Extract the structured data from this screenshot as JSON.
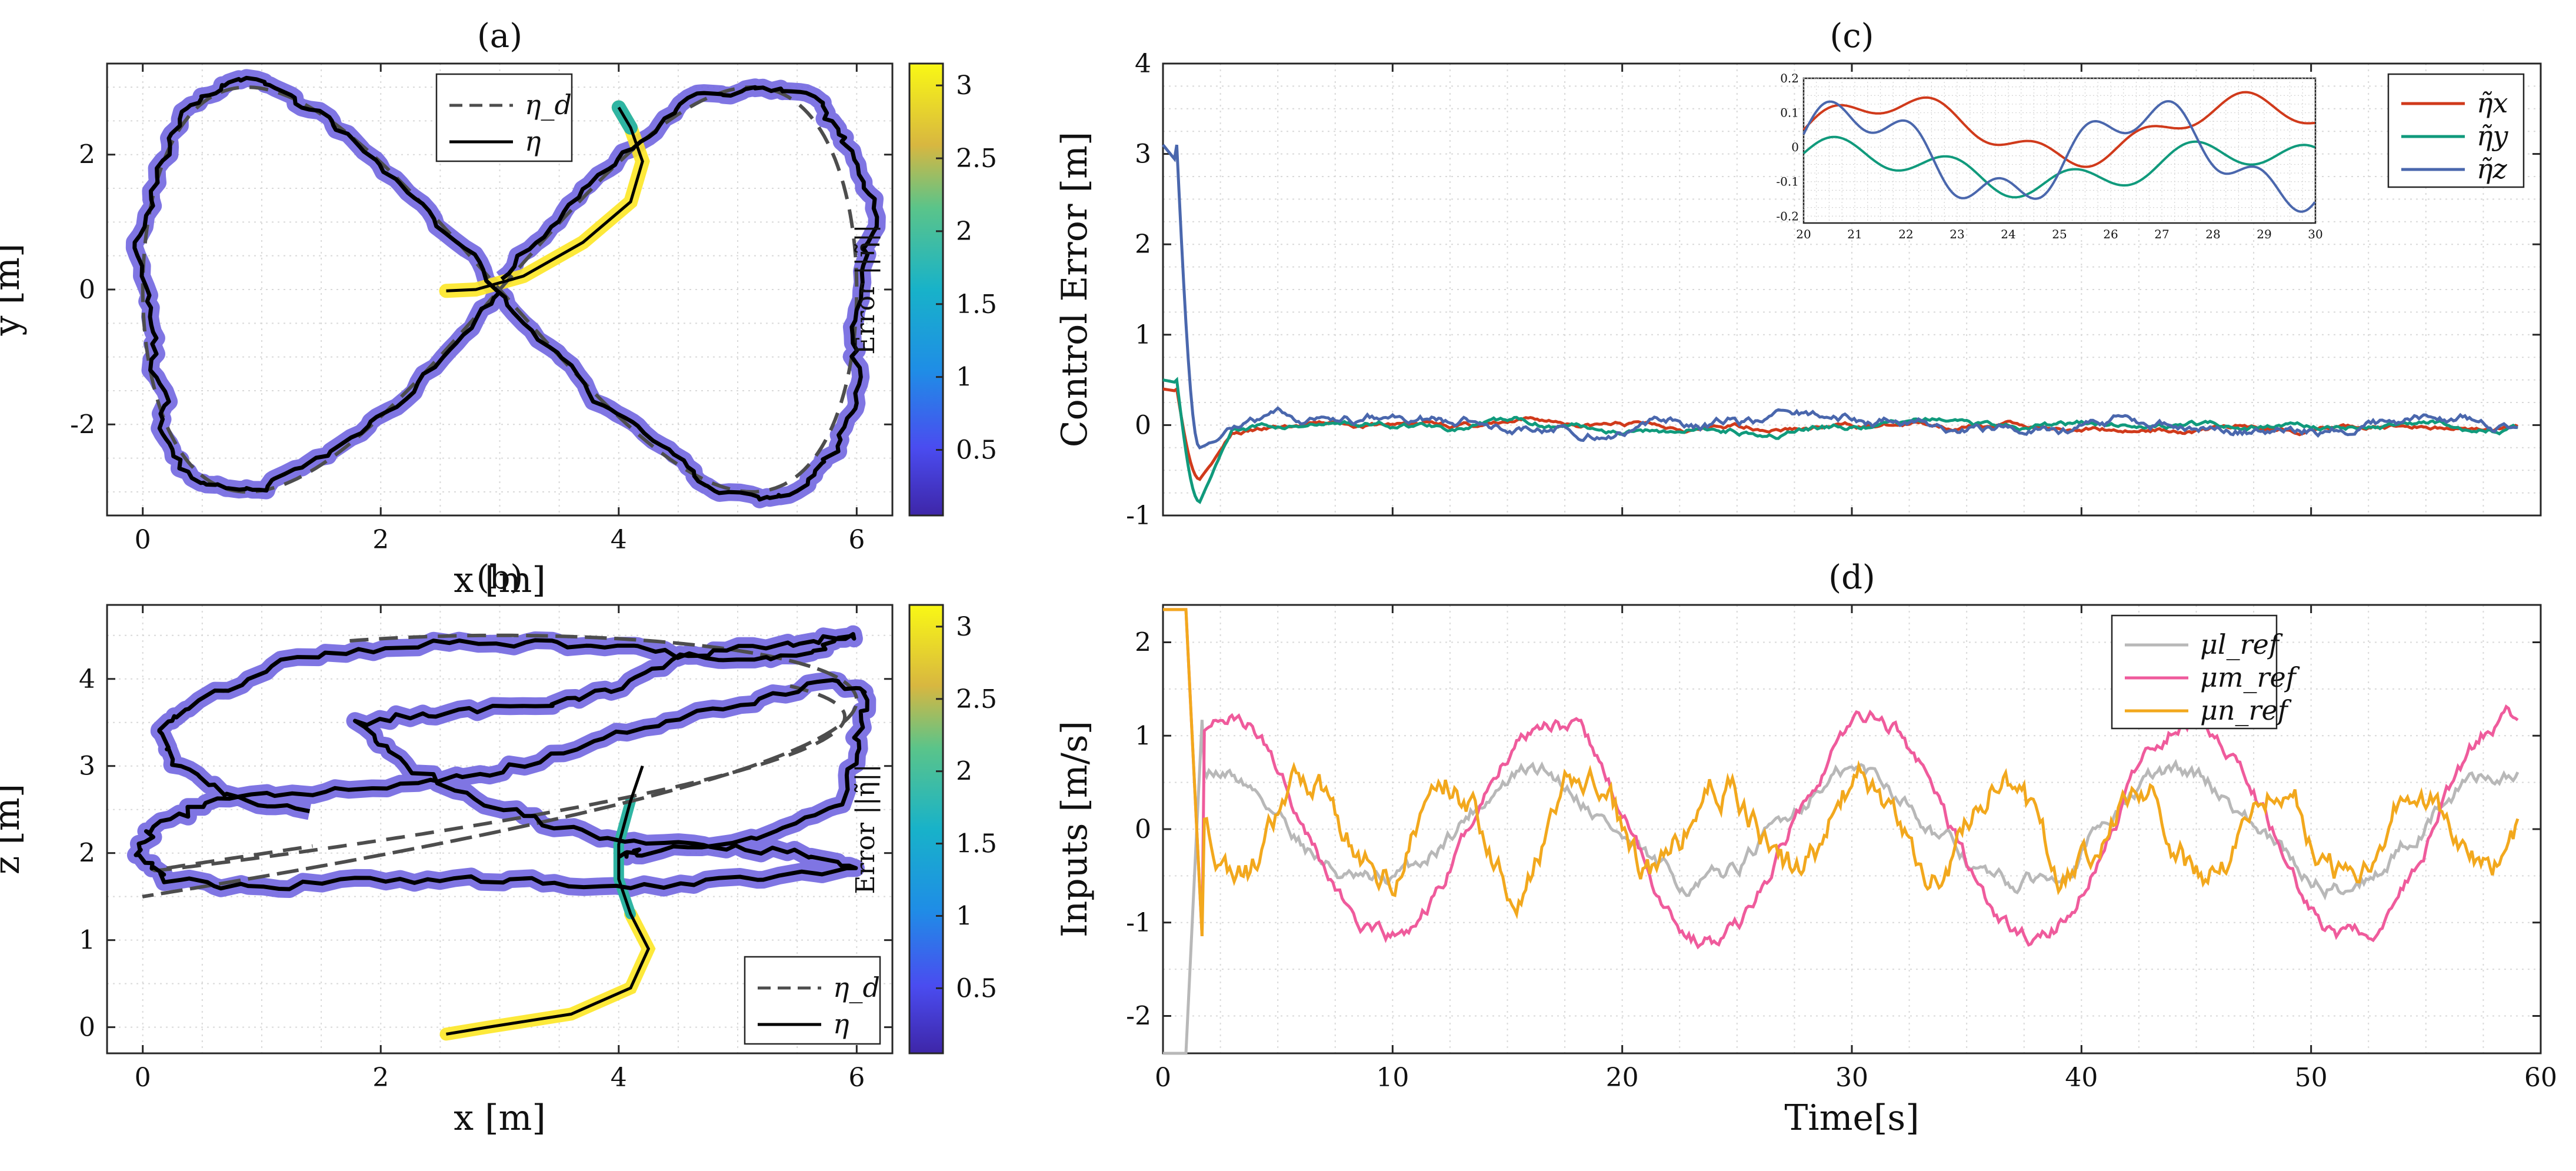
{
  "figure": {
    "background": "#ffffff"
  },
  "colors": {
    "error_low": "#5b4cc8",
    "error_mid": "#2fb5a3",
    "error_high": "#fde725",
    "eta_x": "#d03a1b",
    "eta_y": "#109a7c",
    "eta_z": "#4a67ad",
    "mu_l": "#b8b8b8",
    "mu_m": "#ef5b9c",
    "mu_n": "#f2a81d",
    "desired": "#4d4d4d",
    "actual": "#000000"
  },
  "chart_data": [
    {
      "id": "a",
      "type": "line",
      "panel_label": "(a)",
      "xlabel": "x [m]",
      "ylabel": "y [m]",
      "xlim": [
        -0.3,
        6.3
      ],
      "ylim": [
        -3.35,
        3.35
      ],
      "xticks": [
        0,
        2,
        4,
        6
      ],
      "xtick_labels": [
        "0",
        "2",
        "4",
        "6"
      ],
      "yticks": [
        -2,
        0,
        2
      ],
      "ytick_labels": [
        "-2",
        "0",
        "2"
      ],
      "grid": true,
      "legend": {
        "position": "top-right",
        "entries": [
          "η_d",
          "η"
        ]
      },
      "series": [
        {
          "name": "η_d",
          "style": "dashed",
          "description": "figure-eight",
          "center": [
            3,
            0
          ],
          "amplitude": [
            3,
            3
          ]
        },
        {
          "name": "η",
          "style": "solid",
          "start": [
            2.55,
            -0.02
          ],
          "color_by": "error"
        }
      ],
      "colorbar": {
        "title": "Error ||η̃||",
        "range": [
          0.05,
          3.15
        ],
        "ticks": [
          0.5,
          1,
          1.5,
          2,
          2.5,
          3
        ],
        "tick_labels": [
          "0.5",
          "1",
          "1.5",
          "2",
          "2.5",
          "3"
        ]
      }
    },
    {
      "id": "b",
      "type": "line",
      "panel_label": "(b)",
      "xlabel": "x [m]",
      "ylabel": "z [m]",
      "xlim": [
        -0.3,
        6.3
      ],
      "ylim": [
        -0.3,
        4.85
      ],
      "xticks": [
        0,
        2,
        4,
        6
      ],
      "xtick_labels": [
        "0",
        "2",
        "4",
        "6"
      ],
      "yticks": [
        0,
        1,
        2,
        3,
        4
      ],
      "ytick_labels": [
        "0",
        "1",
        "2",
        "3",
        "4"
      ],
      "grid": true,
      "legend": {
        "position": "bottom-right",
        "entries": [
          "η_d",
          "η"
        ]
      },
      "series": [
        {
          "name": "η_d",
          "style": "dashed",
          "description": "helical loops between z=1.5 and z=4.5"
        },
        {
          "name": "η",
          "style": "solid",
          "start": [
            2.55,
            -0.1
          ],
          "color_by": "error"
        }
      ],
      "colorbar": {
        "title": "Error ||η̃||",
        "range": [
          0.05,
          3.15
        ],
        "ticks": [
          0.5,
          1,
          1.5,
          2,
          2.5,
          3
        ],
        "tick_labels": [
          "0.5",
          "1",
          "1.5",
          "2",
          "2.5",
          "3"
        ]
      }
    },
    {
      "id": "c",
      "type": "line",
      "panel_label": "(c)",
      "xlabel": "",
      "ylabel": "Control Error [m]",
      "xlim": [
        0,
        60
      ],
      "ylim": [
        -1,
        4
      ],
      "xticks": [
        0,
        10,
        20,
        30,
        40,
        50,
        60
      ],
      "xtick_labels": [],
      "yticks": [
        -1,
        0,
        1,
        2,
        3,
        4
      ],
      "ytick_labels": [
        "-1",
        "0",
        "1",
        "2",
        "3",
        "4"
      ],
      "grid": true,
      "legend": {
        "position": "top-right",
        "entries": [
          "η̃x",
          "η̃y",
          "η̃z"
        ]
      },
      "series": [
        {
          "name": "η̃x",
          "t_end": 59,
          "initial": 0.4,
          "overshoot": -0.6,
          "steady_amplitude": 0.1
        },
        {
          "name": "η̃y",
          "t_end": 59,
          "initial": 0.5,
          "overshoot": -0.85,
          "steady_amplitude": 0.12
        },
        {
          "name": "η̃z",
          "t_end": 59,
          "initial": 3.1,
          "overshoot": -0.25,
          "steady_amplitude": 0.2
        }
      ],
      "inset": {
        "xlim": [
          20,
          30
        ],
        "ylim": [
          -0.22,
          0.2
        ],
        "xticks": [
          20,
          21,
          22,
          23,
          24,
          25,
          26,
          27,
          28,
          29,
          30
        ],
        "xtick_labels": [
          "20",
          "21",
          "22",
          "23",
          "24",
          "25",
          "26",
          "27",
          "28",
          "29",
          "30"
        ],
        "yticks": [
          -0.2,
          -0.1,
          0,
          0.1,
          0.2
        ],
        "ytick_labels": [
          "-0.2",
          "-0.1",
          "0",
          "0.1",
          "0.2"
        ]
      }
    },
    {
      "id": "d",
      "type": "line",
      "panel_label": "(d)",
      "xlabel": "Time[s]",
      "ylabel": "Inputs [m/s]",
      "xlim": [
        0,
        60
      ],
      "ylim": [
        -2.4,
        2.4
      ],
      "xticks": [
        0,
        10,
        20,
        30,
        40,
        50,
        60
      ],
      "xtick_labels": [
        "0",
        "10",
        "20",
        "30",
        "40",
        "50",
        "60"
      ],
      "yticks": [
        -2,
        -1,
        0,
        1,
        2
      ],
      "ytick_labels": [
        "-2",
        "-1",
        "0",
        "1",
        "2"
      ],
      "grid": true,
      "legend": {
        "position": "top-center",
        "entries": [
          "μl_ref",
          "μm_ref",
          "μn_ref"
        ]
      },
      "series": [
        {
          "name": "μl_ref",
          "t_end": 59,
          "amplitude": 0.6,
          "initial_saturation": -2.4
        },
        {
          "name": "μm_ref",
          "t_end": 59,
          "amplitude": 1.2,
          "initial_saturation": 2.35
        },
        {
          "name": "μn_ref",
          "t_end": 59,
          "amplitude": 0.5,
          "initial_saturation": 2.35
        }
      ]
    }
  ]
}
